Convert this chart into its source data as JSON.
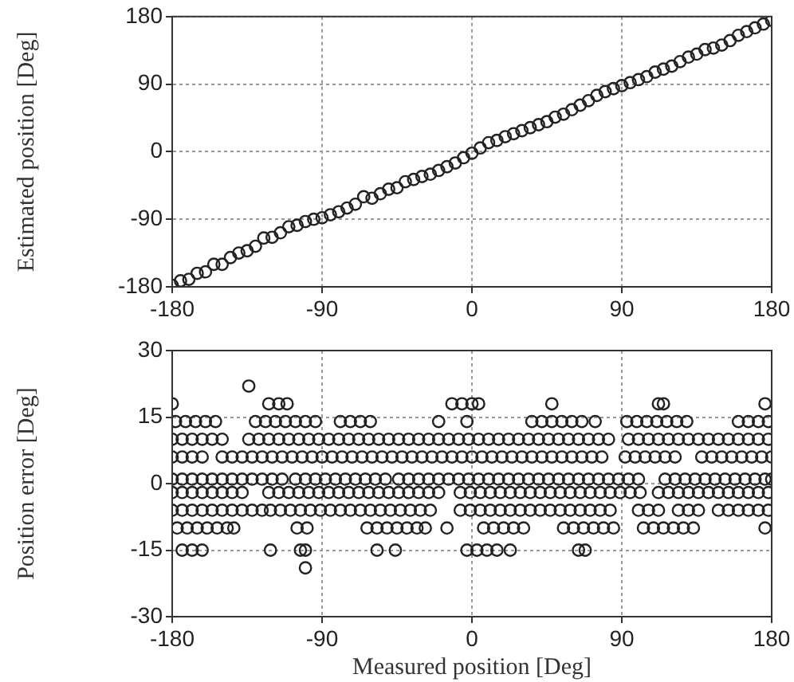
{
  "chart_data": [
    {
      "type": "scatter",
      "ylabel": "Estimated position [Deg]",
      "xlim": [
        -180,
        180
      ],
      "ylim": [
        -180,
        180
      ],
      "xticks": [
        -180,
        -90,
        0,
        90,
        180
      ],
      "yticks": [
        -180,
        -90,
        0,
        90,
        180
      ],
      "grid": true,
      "marker": "circle",
      "legend": false,
      "series": [
        {
          "color": "#222222",
          "x": [
            -180,
            -175,
            -170,
            -165,
            -160,
            -155,
            -150,
            -145,
            -140,
            -135,
            -130,
            -125,
            -120,
            -115,
            -110,
            -105,
            -100,
            -95,
            -90,
            -85,
            -80,
            -75,
            -70,
            -65,
            -60,
            -55,
            -50,
            -45,
            -40,
            -35,
            -30,
            -25,
            -20,
            -15,
            -10,
            -5,
            0,
            5,
            10,
            15,
            20,
            25,
            30,
            35,
            40,
            45,
            50,
            55,
            60,
            65,
            70,
            75,
            80,
            85,
            90,
            95,
            100,
            105,
            110,
            115,
            120,
            125,
            130,
            135,
            140,
            145,
            150,
            155,
            160,
            165,
            170,
            175,
            180
          ],
          "values": [
            -178,
            -172,
            -170,
            -162,
            -160,
            -150,
            -150,
            -141,
            -135,
            -132,
            -126,
            -115,
            -114,
            -108,
            -100,
            -98,
            -93,
            -90,
            -88,
            -84,
            -80,
            -75,
            -70,
            -60,
            -62,
            -56,
            -50,
            -48,
            -40,
            -37,
            -33,
            -30,
            -25,
            -20,
            -15,
            -8,
            -2,
            5,
            12,
            15,
            20,
            24,
            28,
            32,
            36,
            40,
            46,
            50,
            56,
            62,
            68,
            75,
            80,
            84,
            88,
            92,
            96,
            100,
            106,
            110,
            114,
            120,
            126,
            130,
            136,
            138,
            142,
            148,
            155,
            160,
            165,
            170,
            175
          ]
        }
      ]
    },
    {
      "type": "scatter",
      "xlabel": "Measured position [Deg]",
      "ylabel": "Position error [Deg]",
      "xlim": [
        -180,
        180
      ],
      "ylim": [
        -30,
        30
      ],
      "xticks": [
        -180,
        -90,
        0,
        90,
        180
      ],
      "yticks": [
        -30,
        -15,
        0,
        15,
        30
      ],
      "grid": true,
      "marker": "circle",
      "legend": false,
      "series": [
        {
          "color": "#222222",
          "x": [
            -180,
            -174,
            -168,
            -162,
            -156,
            -150,
            -144,
            -138,
            -132,
            -126,
            -120,
            -114,
            -106,
            -100,
            -94,
            -88,
            -82,
            -76,
            -70,
            -64,
            -58,
            -52,
            -44,
            -38,
            -32,
            -26,
            -20,
            -14,
            -8,
            -2,
            4,
            10,
            16,
            22,
            28,
            34,
            40,
            46,
            52,
            58,
            64,
            70,
            76,
            82,
            88,
            94,
            100,
            116,
            122,
            128,
            134,
            140,
            146,
            152,
            158,
            164,
            170,
            176,
            180
          ],
          "values": [
            1,
            1,
            1,
            1,
            1,
            1,
            1,
            1,
            1,
            1,
            1,
            1,
            1,
            1,
            1,
            1,
            1,
            1,
            1,
            1,
            1,
            1,
            1,
            1,
            1,
            1,
            1,
            1,
            1,
            1,
            1,
            1,
            1,
            1,
            1,
            1,
            1,
            1,
            1,
            1,
            1,
            1,
            1,
            1,
            1,
            1,
            1,
            1,
            1,
            1,
            1,
            1,
            1,
            1,
            1,
            1,
            1,
            1,
            1
          ]
        },
        {
          "color": "#222222",
          "x": [
            -180,
            -174,
            -168,
            -162,
            -150,
            -144,
            -138,
            -132,
            -126,
            -120,
            -114,
            -108,
            -102,
            -96,
            -90,
            -84,
            -78,
            -72,
            -66,
            -60,
            -54,
            -48,
            -42,
            -36,
            -30,
            -24,
            -18,
            -12,
            -6,
            0,
            6,
            12,
            18,
            24,
            30,
            36,
            42,
            48,
            54,
            60,
            66,
            72,
            78,
            92,
            98,
            104,
            110,
            116,
            122,
            138,
            144,
            150,
            156,
            162,
            168,
            174,
            180
          ],
          "values": [
            6,
            6,
            6,
            6,
            6,
            6,
            6,
            6,
            6,
            6,
            6,
            6,
            6,
            6,
            6,
            6,
            6,
            6,
            6,
            6,
            6,
            6,
            6,
            6,
            6,
            6,
            6,
            6,
            6,
            6,
            6,
            6,
            6,
            6,
            6,
            6,
            6,
            6,
            6,
            6,
            6,
            6,
            6,
            6,
            6,
            6,
            6,
            6,
            6,
            6,
            6,
            6,
            6,
            6,
            6,
            6,
            6
          ]
        },
        {
          "color": "#222222",
          "x": [
            -180,
            -174,
            -168,
            -162,
            -156,
            -150,
            -144,
            -138,
            -122,
            -116,
            -110,
            -104,
            -98,
            -92,
            -86,
            -80,
            -74,
            -68,
            -62,
            -56,
            -50,
            -44,
            -38,
            -32,
            -26,
            -20,
            -7,
            -1,
            5,
            11,
            17,
            23,
            29,
            35,
            41,
            47,
            53,
            59,
            65,
            71,
            77,
            83,
            89,
            95,
            101,
            112,
            118,
            124,
            130,
            136,
            142,
            148,
            154,
            160,
            166,
            172,
            178
          ],
          "values": [
            -2,
            -2,
            -2,
            -2,
            -2,
            -2,
            -2,
            -2,
            -2,
            -2,
            -2,
            -2,
            -2,
            -2,
            -2,
            -2,
            -2,
            -2,
            -2,
            -2,
            -2,
            -2,
            -2,
            -2,
            -2,
            -2,
            -2,
            -2,
            -2,
            -2,
            -2,
            -2,
            -2,
            -2,
            -2,
            -2,
            -2,
            -2,
            -2,
            -2,
            -2,
            -2,
            -2,
            -2,
            -2,
            -2,
            -2,
            -2,
            -2,
            -2,
            -2,
            -2,
            -2,
            -2,
            -2,
            -2,
            -2
          ]
        },
        {
          "color": "#222222",
          "x": [
            -180,
            -174,
            -168,
            -162,
            -156,
            -150,
            -134,
            -128,
            -122,
            -116,
            -110,
            -104,
            -98,
            -92,
            -86,
            -80,
            -74,
            -68,
            -62,
            -56,
            -50,
            -44,
            -38,
            -32,
            -26,
            -20,
            -14,
            -8,
            -2,
            4,
            10,
            16,
            22,
            28,
            34,
            40,
            46,
            52,
            58,
            64,
            70,
            76,
            82,
            94,
            100,
            106,
            112,
            118,
            124,
            130,
            136,
            142,
            148,
            154,
            160,
            166,
            172,
            178
          ],
          "values": [
            10,
            10,
            10,
            10,
            10,
            10,
            10,
            10,
            10,
            10,
            10,
            10,
            10,
            10,
            10,
            10,
            10,
            10,
            10,
            10,
            10,
            10,
            10,
            10,
            10,
            10,
            10,
            10,
            10,
            10,
            10,
            10,
            10,
            10,
            10,
            10,
            10,
            10,
            10,
            10,
            10,
            10,
            10,
            10,
            10,
            10,
            10,
            10,
            10,
            10,
            10,
            10,
            10,
            10,
            10,
            10,
            10,
            10
          ]
        },
        {
          "color": "#222222",
          "x": [
            -180,
            -174,
            -168,
            -162,
            -156,
            -150,
            -144,
            -138,
            -132,
            -126,
            -121,
            -115,
            -109,
            -103,
            -97,
            -91,
            -85,
            -79,
            -73,
            -67,
            -61,
            -55,
            -49,
            -43,
            -37,
            -31,
            -25,
            -7,
            -1,
            5,
            11,
            17,
            23,
            29,
            35,
            41,
            47,
            53,
            59,
            65,
            71,
            77,
            83,
            100,
            106,
            112,
            124,
            130,
            136,
            148,
            154,
            160,
            166,
            172,
            178
          ],
          "values": [
            -6,
            -6,
            -6,
            -6,
            -6,
            -6,
            -6,
            -6,
            -6,
            -6,
            -6,
            -6,
            -6,
            -6,
            -6,
            -6,
            -6,
            -6,
            -6,
            -6,
            -6,
            -6,
            -6,
            -6,
            -6,
            -6,
            -6,
            -6,
            -6,
            -6,
            -6,
            -6,
            -6,
            -6,
            -6,
            -6,
            -6,
            -6,
            -6,
            -6,
            -6,
            -6,
            -6,
            -6,
            -6,
            -6,
            -6,
            -6,
            -6,
            -6,
            -6,
            -6,
            -6,
            -6,
            -6
          ]
        },
        {
          "color": "#222222",
          "x": [
            -178,
            -172,
            -166,
            -160,
            -154,
            -130,
            -124,
            -118,
            -112,
            -106,
            -100,
            -94,
            -79,
            -73,
            -67,
            -61,
            -20,
            -3,
            36,
            42,
            48,
            54,
            60,
            66,
            74,
            93,
            99,
            105,
            111,
            117,
            123,
            129,
            160,
            166,
            172,
            178
          ],
          "values": [
            14,
            14,
            14,
            14,
            14,
            14,
            14,
            14,
            14,
            14,
            14,
            14,
            14,
            14,
            14,
            14,
            14,
            14,
            14,
            14,
            14,
            14,
            14,
            14,
            14,
            14,
            14,
            14,
            14,
            14,
            14,
            14,
            14,
            14,
            14,
            14
          ]
        },
        {
          "color": "#222222",
          "x": [
            -177,
            -171,
            -165,
            -159,
            -153,
            -147,
            -143,
            -105,
            -99,
            -63,
            -57,
            -51,
            -45,
            -39,
            -33,
            -28,
            -15,
            7,
            13,
            19,
            25,
            31,
            55,
            61,
            67,
            73,
            79,
            85,
            103,
            109,
            115,
            121,
            127,
            133,
            176
          ],
          "values": [
            -10,
            -10,
            -10,
            -10,
            -10,
            -10,
            -10,
            -10,
            -10,
            -10,
            -10,
            -10,
            -10,
            -10,
            -10,
            -10,
            -10,
            -10,
            -10,
            -10,
            -10,
            -10,
            -10,
            -10,
            -10,
            -10,
            -10,
            -10,
            -10,
            -10,
            -10,
            -10,
            -10,
            -10,
            -10
          ]
        },
        {
          "color": "#222222",
          "x": [
            -180,
            -122,
            -116,
            -111,
            -12,
            -6,
            0,
            4,
            48,
            112,
            115,
            176
          ],
          "values": [
            18,
            18,
            18,
            18,
            18,
            18,
            18,
            18,
            18,
            18,
            18,
            18
          ]
        },
        {
          "color": "#222222",
          "x": [
            -174,
            -168,
            -162,
            -121,
            -103,
            -100,
            -57,
            -46,
            -3,
            3,
            9,
            15,
            23,
            64,
            68
          ],
          "values": [
            -15,
            -15,
            -15,
            -15,
            -15,
            -15,
            -15,
            -15,
            -15,
            -15,
            -15,
            -15,
            -15,
            -15,
            -15
          ]
        },
        {
          "color": "#222222",
          "x": [
            -134,
            -100
          ],
          "values": [
            22,
            -19
          ]
        }
      ]
    }
  ]
}
